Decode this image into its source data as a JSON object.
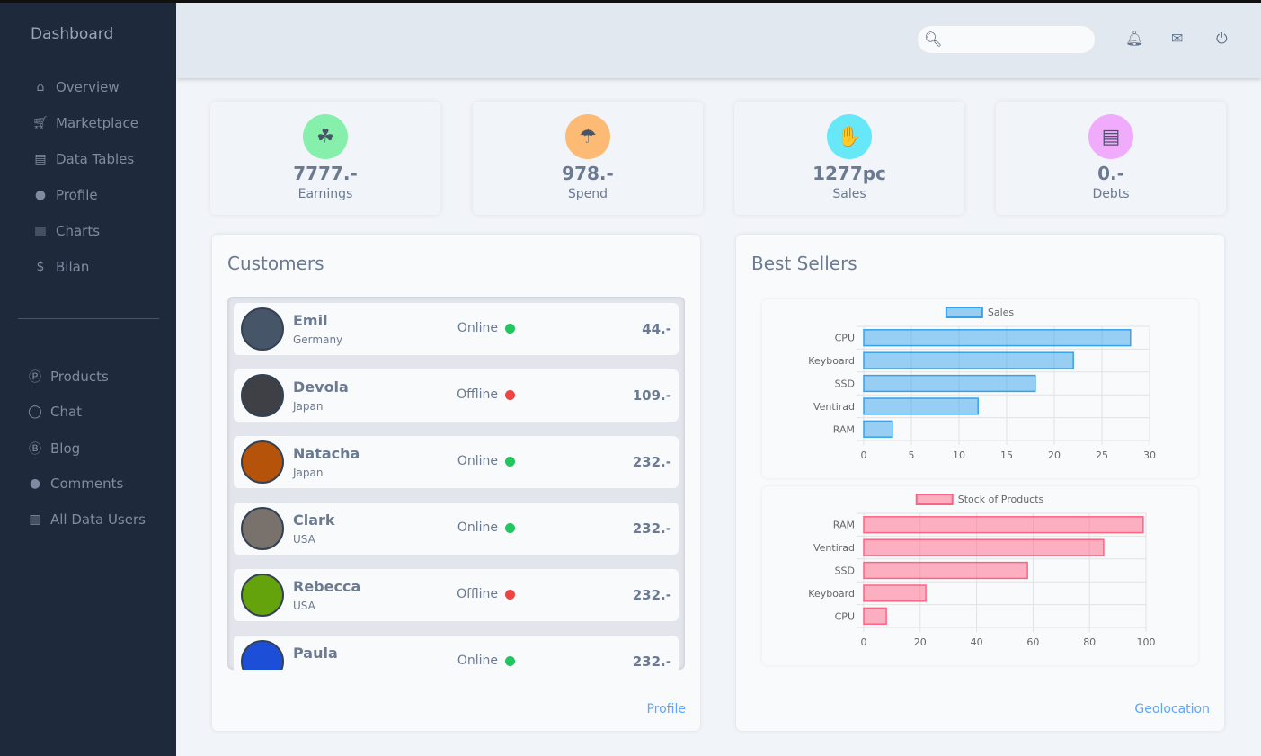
{
  "sidebar": {
    "title": "Dashboard",
    "items": [
      {
        "label": "Overview",
        "icon": "home-icon"
      },
      {
        "label": "Marketplace",
        "icon": "cart-icon"
      },
      {
        "label": "Data Tables",
        "icon": "clipboard-icon"
      },
      {
        "label": "Profile",
        "icon": "user-icon"
      },
      {
        "label": "Charts",
        "icon": "chart-icon"
      },
      {
        "label": "Bilan",
        "icon": "dollar-icon"
      }
    ],
    "items2": [
      {
        "label": "Products",
        "icon": "product-icon"
      },
      {
        "label": "Chat",
        "icon": "chat-icon"
      },
      {
        "label": "Blog",
        "icon": "blog-icon"
      },
      {
        "label": "Comments",
        "icon": "user-icon"
      },
      {
        "label": "All Data Users",
        "icon": "chart-icon"
      }
    ]
  },
  "header": {
    "search_placeholder": ""
  },
  "stats": [
    {
      "value": "7777.-",
      "label": "Earnings",
      "color": "#bbf7d0"
    },
    {
      "value": "978.-",
      "label": "Spend",
      "color": "#fed7aa"
    },
    {
      "value": "1277pc",
      "label": "Sales",
      "color": "#a5f3fc"
    },
    {
      "value": "0.-",
      "label": "Debts",
      "color": "#f5d0fe"
    }
  ],
  "customers": {
    "title": "Customers",
    "link": "Profile",
    "rows": [
      {
        "name": "Emil",
        "country": "Germany",
        "status": "Online",
        "amount": "44.-"
      },
      {
        "name": "Devola",
        "country": "Japan",
        "status": "Offline",
        "amount": "109.-"
      },
      {
        "name": "Natacha",
        "country": "Japan",
        "status": "Online",
        "amount": "232.-"
      },
      {
        "name": "Clark",
        "country": "USA",
        "status": "Online",
        "amount": "232.-"
      },
      {
        "name": "Rebecca",
        "country": "USA",
        "status": "Offline",
        "amount": "232.-"
      },
      {
        "name": "Paula",
        "country": "",
        "status": "Online",
        "amount": "232.-"
      }
    ]
  },
  "bestsellers": {
    "title": "Best Sellers",
    "link": "Geolocation"
  },
  "chart_data": [
    {
      "type": "bar",
      "orientation": "horizontal",
      "categories": [
        "CPU",
        "Keyboard",
        "SSD",
        "Ventirad",
        "RAM"
      ],
      "series": [
        {
          "name": "Sales",
          "values": [
            28,
            22,
            18,
            12,
            3
          ]
        }
      ],
      "xlim": [
        0,
        30
      ],
      "ticks": [
        0,
        5,
        10,
        15,
        20,
        25,
        30
      ],
      "grid": true,
      "legend": "top",
      "color": "#36a2eb"
    },
    {
      "type": "bar",
      "orientation": "horizontal",
      "categories": [
        "RAM",
        "Ventirad",
        "SSD",
        "Keyboard",
        "CPU"
      ],
      "series": [
        {
          "name": "Stock of Products",
          "values": [
            99,
            85,
            58,
            22,
            8
          ]
        }
      ],
      "xlim": [
        0,
        100
      ],
      "ticks": [
        0,
        20,
        40,
        60,
        80,
        100
      ],
      "grid": true,
      "legend": "top",
      "color": "#ff6384"
    }
  ]
}
